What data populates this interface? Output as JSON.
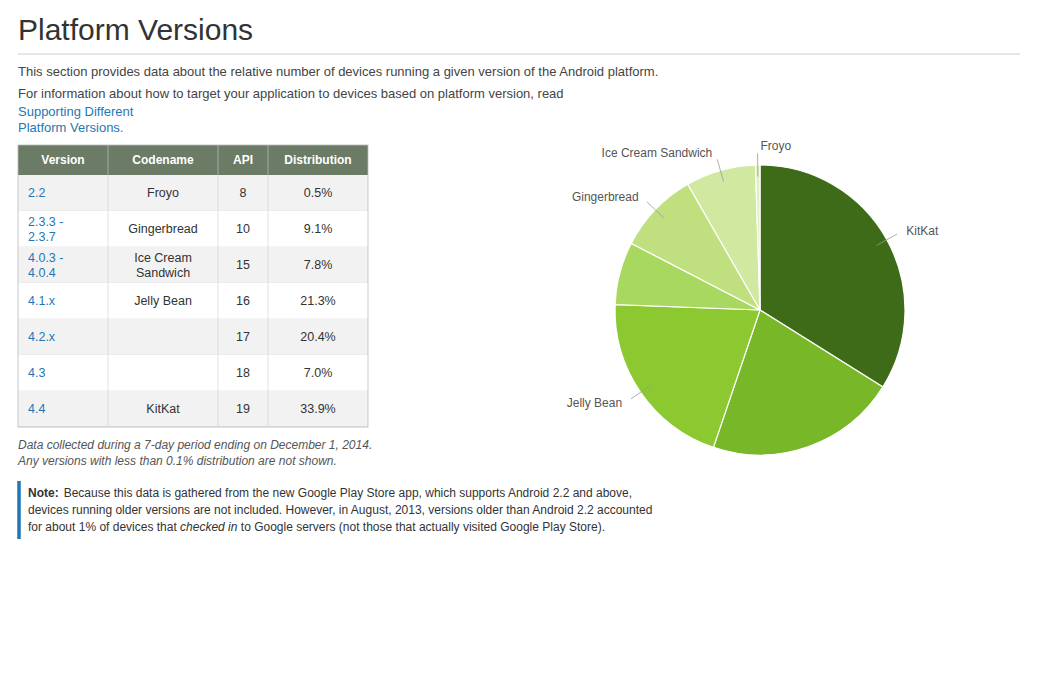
{
  "chart_data": {
    "type": "pie",
    "title": "Platform Versions",
    "subtitle": [
      "This section provides data about the relative number of devices running a given version of the Android platform.",
      "For information about how to target your application to devices based on platform version, read "
    ],
    "link": "Supporting Different\nPlatform Versions.",
    "categories": [
      "KitKat",
      null,
      "Jelly Bean",
      null,
      "Gingerbread",
      "Ice Cream Sandwich",
      "Froyo"
    ],
    "values": [
      33.9,
      21.3,
      20.4,
      7.0,
      9.1,
      7.8,
      0.5
    ],
    "colors": [
      "#3e6b18",
      "#78b828",
      "#8cc830",
      "#a8d860",
      "#c0e080",
      "#d0e8a0",
      "#e0f0c0"
    ],
    "table": {
      "headers": [
        "Version",
        "Codename",
        "API",
        "Distribution"
      ],
      "rows": [
        [
          "2.2",
          "Froyo",
          "8",
          "0.5%"
        ],
        [
          "2.3.3 -\n2.3.7",
          "Gingerbread",
          "10",
          "9.1%"
        ],
        [
          "4.0.3 -\n4.0.4",
          "Ice Cream\nSandwich",
          "15",
          "7.8%"
        ],
        [
          "4.1.x",
          "Jelly Bean",
          "16",
          "21.3%"
        ],
        [
          "4.2.x",
          null,
          "17",
          "20.4%"
        ],
        [
          "4.3",
          null,
          "18",
          "7.0%"
        ],
        [
          "4.4",
          "KitKat",
          "19",
          "33.9%"
        ]
      ]
    },
    "footnotes": [
      "Data collected during a 7-day period ending on December 1, 2014.",
      "Any versions with less than 0.1% distribution are not shown."
    ],
    "note": [
      [
        "Note:",
        "Because this data is gathered from the new Google Play Store app, which supports Android 2.2 and above,"
      ],
      [
        "devices running older versions are not included. However, in August, 2013, versions older than Android 2.2 accounted"
      ],
      [
        "for about 1% of devices that ",
        "checked in",
        " to Google servers (not those that actually visited Google Play Store)."
      ]
    ]
  }
}
